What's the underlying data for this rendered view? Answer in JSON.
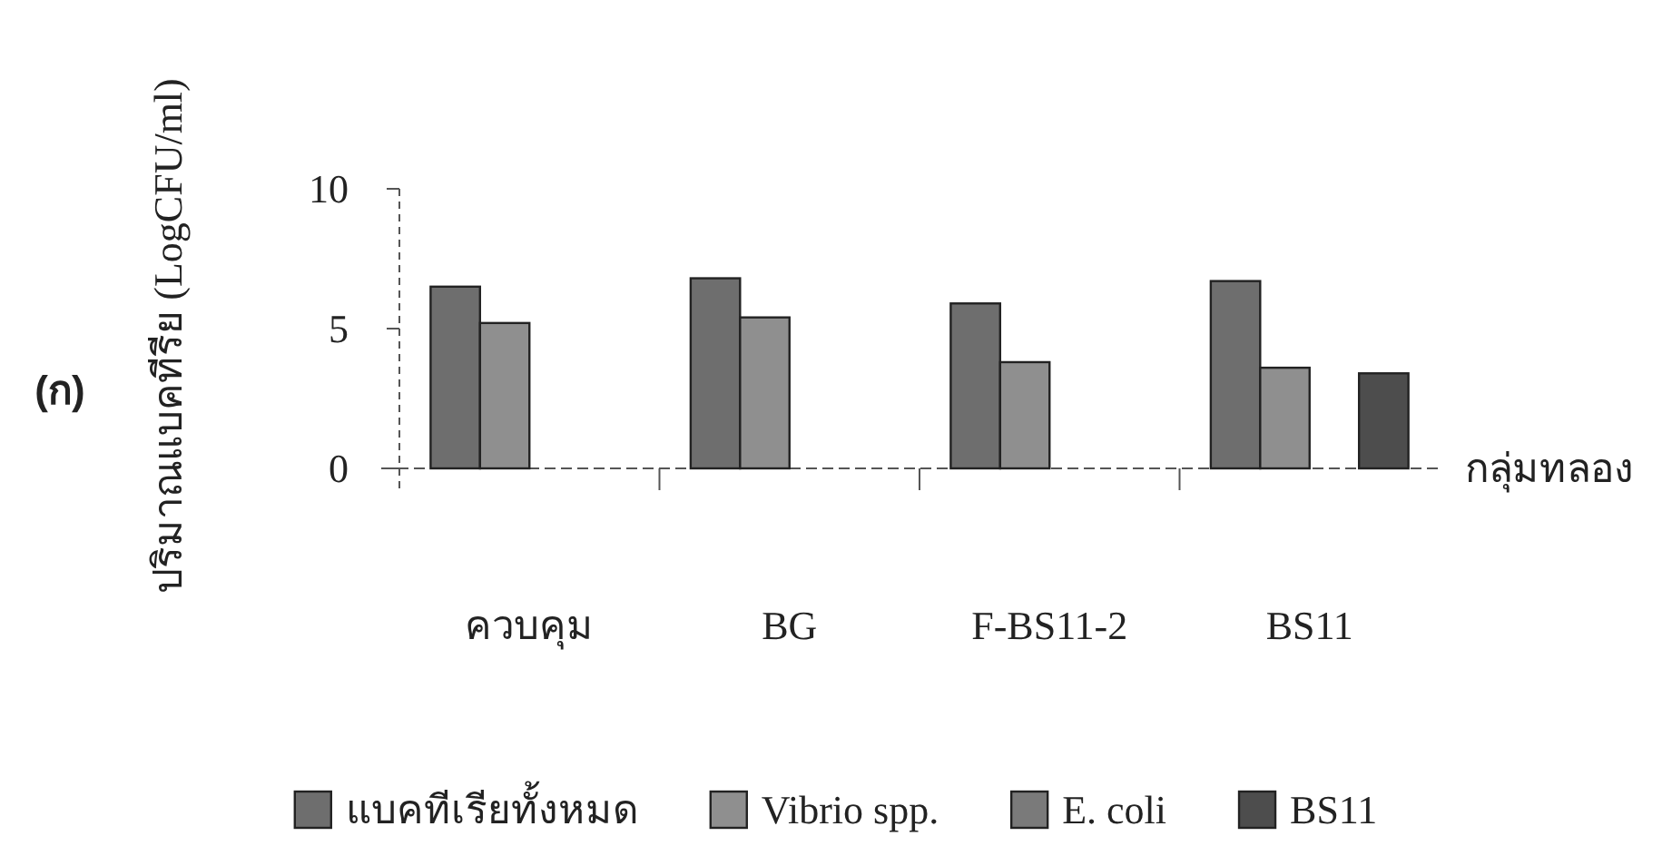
{
  "chart_data": {
    "type": "bar",
    "categories": [
      "ควบคุม",
      "BG",
      "F-BS11-2",
      "BS11"
    ],
    "series": [
      {
        "name": "แบคทีเรียทั้งหมด",
        "color": "#6e6e6e",
        "values": [
          6.5,
          6.8,
          5.9,
          6.7
        ]
      },
      {
        "name": "Vibrio spp.",
        "color": "#8f8f8f",
        "values": [
          5.2,
          5.4,
          3.8,
          3.6
        ]
      },
      {
        "name": "E. coli",
        "color": "#7a7a7a",
        "values": [
          null,
          null,
          null,
          null
        ]
      },
      {
        "name": "BS11",
        "color": "#4d4d4d",
        "values": [
          null,
          null,
          null,
          3.4
        ]
      }
    ],
    "ylim": [
      0,
      10
    ],
    "yticks": [
      0,
      5,
      10
    ],
    "ylabel": "ปริมาณแบคทีรีย (LogCFU/ml)",
    "xlabel": "กลุ่มทลอง",
    "annotations": [
      "(ก)"
    ],
    "legend": "bottom"
  }
}
